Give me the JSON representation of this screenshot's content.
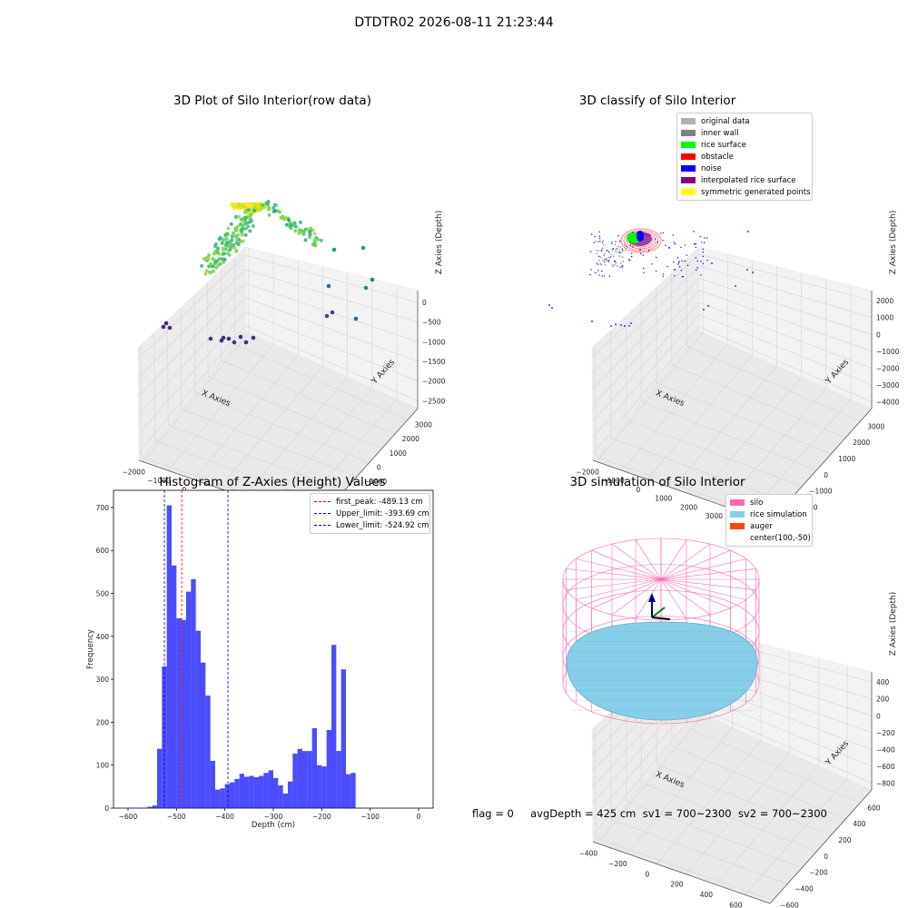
{
  "figure_title": "DTDTR02 2026-08-11 21:23:44",
  "status_line": "flag = 0     avgDepth = 425 cm  sv1 = 700~2300  sv2 = 700~2300",
  "chart_data": [
    {
      "type": "scatter",
      "projection": "3d",
      "title": "3D Plot of Silo Interior(row data)",
      "xlabel": "X Axies",
      "ylabel": "Y Axies",
      "zlabel": "Z Axies (Depth)",
      "x_ticks": [
        "−2000",
        "−1000",
        "0",
        "1000",
        "2000",
        "3000",
        "4000"
      ],
      "y_ticks": [
        "−4000",
        "−3000",
        "−2000",
        "−1000",
        "0",
        "1000",
        "2000",
        "3000"
      ],
      "z_ticks": [
        "−2500",
        "−2000",
        "−1500",
        "−1000",
        "−500",
        "0"
      ],
      "colormap": "viridis (by depth)"
    },
    {
      "type": "scatter",
      "projection": "3d",
      "title": "3D classify of Silo Interior",
      "xlabel": "X Axies",
      "ylabel": "Y Axies",
      "zlabel": "Z Axies (Depth)",
      "x_ticks": [
        "−2000",
        "−1000",
        "0",
        "1000",
        "2000",
        "3000",
        "4000"
      ],
      "y_ticks": [
        "−3000",
        "−2000",
        "−1000",
        "0",
        "1000",
        "2000",
        "3000"
      ],
      "z_ticks": [
        "−4000",
        "−3000",
        "−2000",
        "−1000",
        "0",
        "1000",
        "2000"
      ],
      "legend_position": "top-right",
      "legend": [
        {
          "label": "original data",
          "color": "#b0b0b0"
        },
        {
          "label": "inner wall",
          "color": "#808080"
        },
        {
          "label": "rice surface",
          "color": "#00ff00"
        },
        {
          "label": "obstacle",
          "color": "#ff0000"
        },
        {
          "label": "noise",
          "color": "#0000ff"
        },
        {
          "label": "interpolated rice surface",
          "color": "#800080"
        },
        {
          "label": "symmetric generated points",
          "color": "#ffff00"
        }
      ]
    },
    {
      "type": "bar",
      "title": "Histogram of Z-Axies (Height) Values",
      "xlabel": "Depth (cm)",
      "ylabel": "Frequency",
      "xlim": [
        -630,
        30
      ],
      "ylim": [
        0,
        740
      ],
      "x_ticks": [
        -600,
        -500,
        -400,
        -300,
        -200,
        -100,
        0
      ],
      "y_ticks": [
        0,
        100,
        200,
        300,
        400,
        500,
        600,
        700
      ],
      "bar_color": "#0000ff",
      "bin_start": -600,
      "bin_width": 10,
      "values": [
        1,
        1,
        0,
        1,
        3,
        6,
        138,
        330,
        705,
        565,
        442,
        438,
        504,
        533,
        413,
        339,
        262,
        110,
        43,
        46,
        56,
        60,
        68,
        80,
        73,
        75,
        72,
        75,
        82,
        88,
        70,
        53,
        34,
        62,
        127,
        138,
        133,
        133,
        186,
        100,
        97,
        182,
        380,
        133,
        323,
        79,
        82
      ],
      "legend_position": "top-right",
      "lines": [
        {
          "label": "first_peak: -489.13 cm",
          "x": -489.13,
          "color": "#ff0000"
        },
        {
          "label": "Upper_limit: -393.69 cm",
          "x": -393.69,
          "color": "#0000cc"
        },
        {
          "label": "Lower_limit: -524.92 cm",
          "x": -524.92,
          "color": "#0000cc"
        }
      ]
    },
    {
      "type": "scatter",
      "projection": "3d",
      "title": "3D simulation of Silo Interior",
      "xlabel": "X Axies",
      "ylabel": "Y Axies",
      "zlabel": "Z Axies (Depth)",
      "x_ticks": [
        "−400",
        "−200",
        "0",
        "200",
        "400",
        "600"
      ],
      "y_ticks": [
        "−600",
        "−400",
        "−200",
        "0",
        "200",
        "400",
        "600"
      ],
      "z_ticks": [
        "−800",
        "−600",
        "−400",
        "−200",
        "0",
        "200",
        "400"
      ],
      "legend_position": "top-right",
      "legend": [
        {
          "label": "silo",
          "color": "#ff69b4"
        },
        {
          "label": "rice simulation",
          "color": "#87ceeb"
        },
        {
          "label": "auger",
          "color": "#ff4500"
        },
        {
          "label": "center(100,-50)",
          "color": ""
        }
      ]
    }
  ]
}
